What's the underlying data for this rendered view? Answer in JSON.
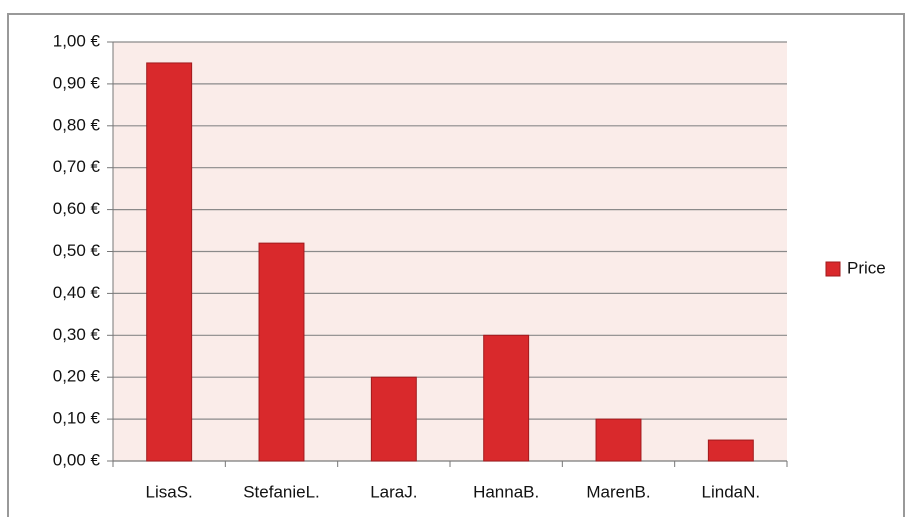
{
  "chart_data": {
    "type": "bar",
    "categories": [
      "LisaS.",
      "StefanieL.",
      "LaraJ.",
      "HannaB.",
      "MarenB.",
      "LindaN."
    ],
    "series": [
      {
        "name": "Price",
        "color": "#d9292c",
        "values": [
          0.95,
          0.52,
          0.2,
          0.3,
          0.1,
          0.05
        ]
      }
    ],
    "ylim": [
      0,
      1
    ],
    "yticks": [
      {
        "value": 0,
        "label": "0,00 €"
      },
      {
        "value": 0.1,
        "label": "0,10 €"
      },
      {
        "value": 0.2,
        "label": "0,20 €"
      },
      {
        "value": 0.3,
        "label": "0,30 €"
      },
      {
        "value": 0.4,
        "label": "0,40 €"
      },
      {
        "value": 0.5,
        "label": "0,50 €"
      },
      {
        "value": 0.6,
        "label": "0,60 €"
      },
      {
        "value": 0.7,
        "label": "0,70 €"
      },
      {
        "value": 0.8,
        "label": "0,80 €"
      },
      {
        "value": 0.9,
        "label": "0,90 €"
      },
      {
        "value": 1,
        "label": "1,00 €"
      }
    ],
    "grid": true,
    "legend": "right"
  }
}
